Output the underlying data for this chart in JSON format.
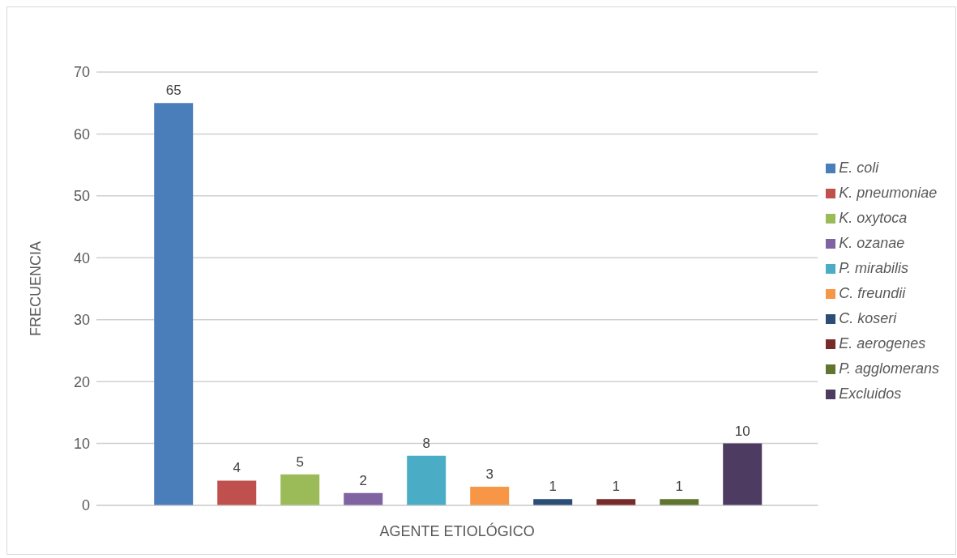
{
  "chart_data": {
    "type": "bar",
    "xlabel": "AGENTE ETIOLÓGICO",
    "ylabel": "FRECUENCIA",
    "categories": [
      null
    ],
    "series": [
      {
        "name": "E. coli",
        "color": "#4a7ebb",
        "values": [
          65
        ]
      },
      {
        "name": "K. pneumoniae",
        "color": "#c0504d",
        "values": [
          4
        ]
      },
      {
        "name": "K. oxytoca",
        "color": "#9bbb59",
        "values": [
          5
        ]
      },
      {
        "name": "K. ozanae",
        "color": "#8064a2",
        "values": [
          2
        ]
      },
      {
        "name": "P. mirabilis",
        "color": "#4bacc6",
        "values": [
          8
        ]
      },
      {
        "name": "C. freundii",
        "color": "#f79646",
        "values": [
          3
        ]
      },
      {
        "name": "C. koseri",
        "color": "#2c4d75",
        "values": [
          1
        ]
      },
      {
        "name": "E. aerogenes",
        "color": "#772c2a",
        "values": [
          1
        ]
      },
      {
        "name": "P. agglomerans",
        "color": "#5f7530",
        "values": [
          1
        ]
      },
      {
        "name": "Excluidos",
        "color": "#4d3b62",
        "values": [
          10
        ]
      }
    ],
    "ylim": [
      0,
      70
    ],
    "yticks": [
      0,
      10,
      20,
      30,
      40,
      50,
      60,
      70
    ],
    "grid": "y",
    "legend": "right",
    "data_labels": true
  }
}
